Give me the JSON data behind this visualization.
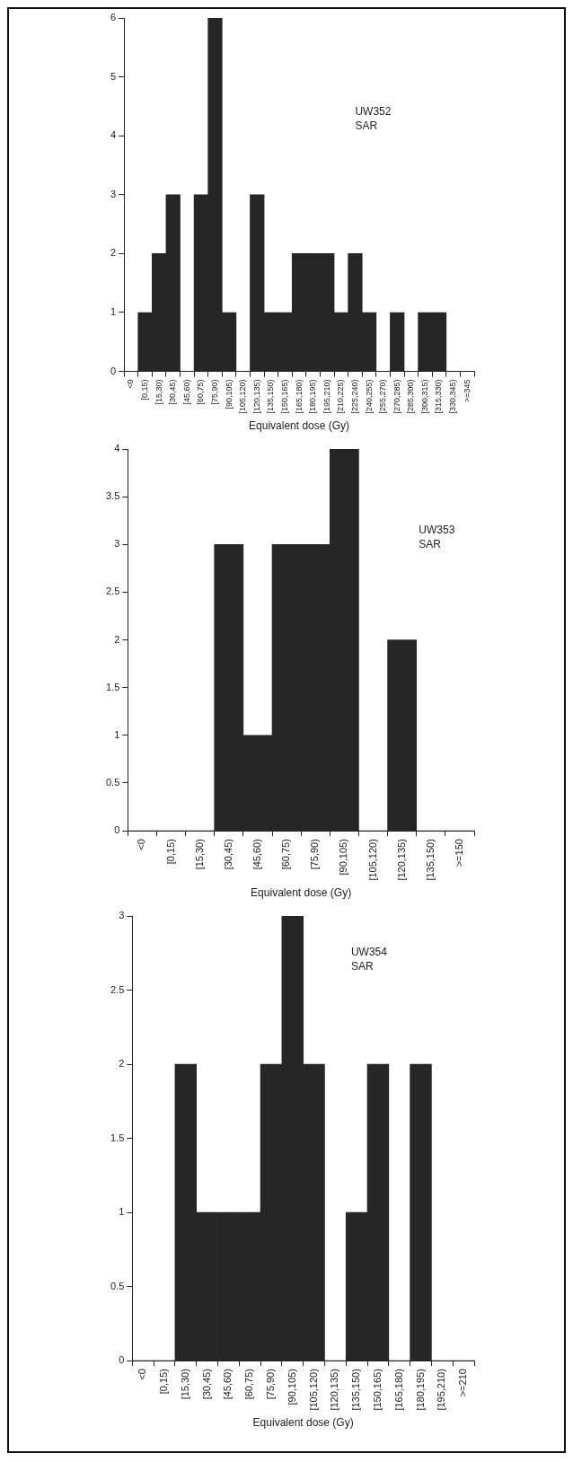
{
  "chart_data": [
    {
      "type": "bar",
      "xlabel": "Equivalent dose (Gy)",
      "annotations": [
        "UW352",
        "SAR"
      ],
      "categories": [
        "<0",
        "[0,15)",
        "[15,30)",
        "[30,45)",
        "[45,60)",
        "[60,75)",
        "[75,90)",
        "[90,105)",
        "[105,120)",
        "[120,135)",
        "[135,150)",
        "[150,165)",
        "[165,180)",
        "[180,195)",
        "[195,210)",
        "[210,225)",
        "[225,240)",
        "[240,255)",
        "[255,270)",
        "[270,285)",
        "[285,300)",
        "[300,315)",
        "[315,330)",
        "[330,345)",
        ">=345"
      ],
      "values": [
        0,
        1,
        2,
        3,
        0,
        3,
        6,
        1,
        0,
        3,
        1,
        1,
        2,
        2,
        2,
        1,
        2,
        1,
        0,
        1,
        0,
        1,
        1,
        0,
        0
      ],
      "color": "#262626",
      "ylim": [
        0,
        6
      ],
      "yticks": [
        0,
        1,
        2,
        3,
        4,
        5,
        6
      ],
      "grid": false,
      "legend": false
    },
    {
      "type": "bar",
      "xlabel": "Equivalent dose (Gy)",
      "annotations": [
        "UW353",
        "SAR"
      ],
      "categories": [
        "<0",
        "[0,15)",
        "[15,30)",
        "[30,45)",
        "[45,60)",
        "[60,75)",
        "[75,90)",
        "[90,105)",
        "[105,120)",
        "[120,135)",
        "[135,150)",
        ">=150"
      ],
      "values": [
        0,
        0,
        0,
        3,
        1,
        3,
        3,
        4,
        0,
        2,
        0,
        0
      ],
      "color": "#262626",
      "ylim": [
        0,
        4
      ],
      "yticks": [
        0,
        0.5,
        1,
        1.5,
        2,
        2.5,
        3,
        3.5,
        4
      ],
      "grid": false,
      "legend": false
    },
    {
      "type": "bar",
      "xlabel": "Equivalent dose (Gy)",
      "annotations": [
        "UW354",
        "SAR"
      ],
      "categories": [
        "<0",
        "[0,15)",
        "[15,30)",
        "[30,45)",
        "[45,60)",
        "[60,75)",
        "[75,90)",
        "[90,105)",
        "[105,120)",
        "[120,135)",
        "[135,150)",
        "[150,165)",
        "[165,180)",
        "[180,195)",
        "[195,210)",
        ">=210"
      ],
      "values": [
        0,
        0,
        2,
        1,
        1,
        1,
        2,
        3,
        2,
        0,
        1,
        2,
        0,
        2,
        0,
        0
      ],
      "color": "#262626",
      "ylim": [
        0,
        3
      ],
      "yticks": [
        0,
        0.5,
        1,
        1.5,
        2,
        2.5,
        3
      ],
      "grid": false,
      "legend": false
    }
  ]
}
